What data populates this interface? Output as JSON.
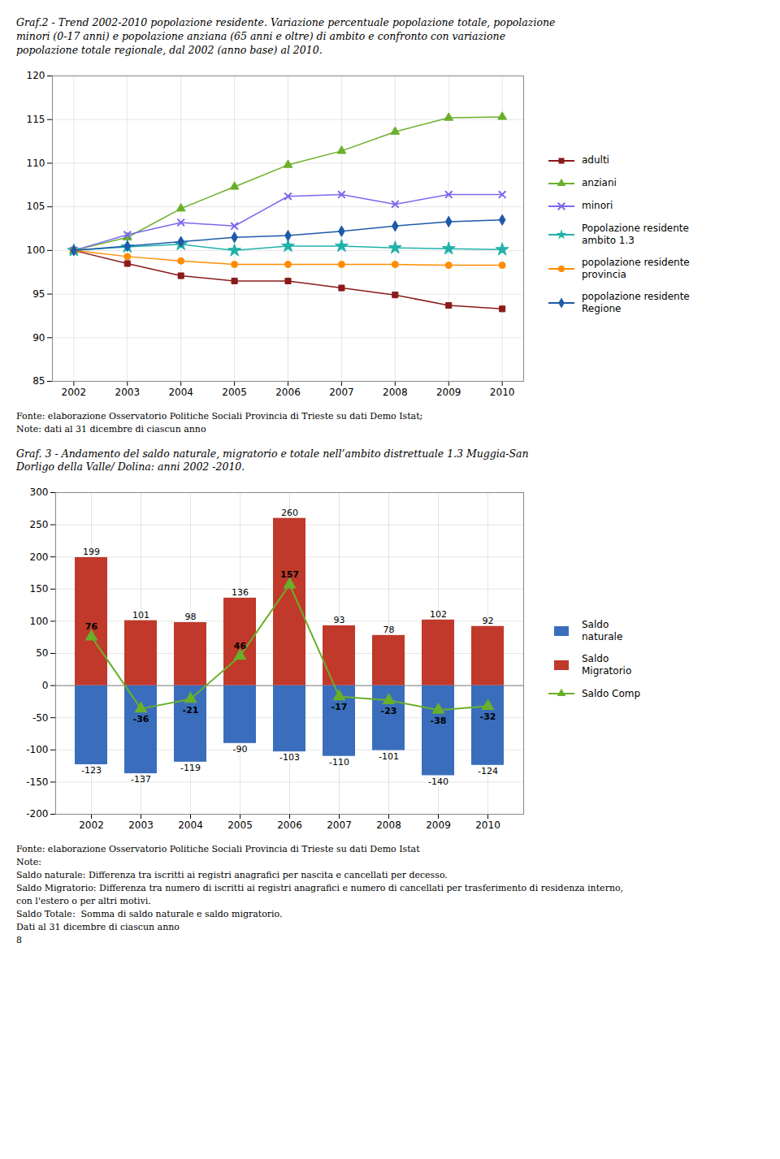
{
  "chart_data": [
    {
      "type": "line",
      "title": "Graf.2 - Trend 2002-2010 popolazione residente. Variazione percentuale popolazione totale, popolazione\nminori (0-17 anni) e popolazione anziana (65 anni e oltre) di ambito e confronto con variazione\npopolazione totale regionale, dal 2002 (anno base) al 2010.",
      "x": [
        2002,
        2003,
        2004,
        2005,
        2006,
        2007,
        2008,
        2009,
        2010
      ],
      "series": [
        {
          "name": "adulti",
          "color": "#8B1A1A",
          "marker": "square",
          "values": [
            100,
            98.5,
            97.1,
            96.5,
            96.5,
            95.7,
            94.9,
            93.7,
            93.3
          ]
        },
        {
          "name": "anziani",
          "color": "#6AAF2A",
          "marker": "triangle",
          "values": [
            100,
            101.5,
            104.8,
            107.3,
            109.8,
            111.4,
            113.6,
            115.2,
            115.3
          ]
        },
        {
          "name": "minori",
          "color": "#7B68EE",
          "marker": "x",
          "values": [
            100,
            101.8,
            103.2,
            102.8,
            106.2,
            106.4,
            105.3,
            106.4,
            106.4
          ]
        },
        {
          "name": "Popolazione residente\nambito 1.3",
          "color": "#20B2AA",
          "marker": "star",
          "values": [
            100,
            100.4,
            100.7,
            100.0,
            100.5,
            100.5,
            100.3,
            100.2,
            100.1
          ]
        },
        {
          "name": "popolazione residente\nprovincia",
          "color": "#FF8C00",
          "marker": "circle",
          "values": [
            100,
            99.3,
            98.8,
            98.4,
            98.4,
            98.4,
            98.4,
            98.3,
            98.3
          ]
        },
        {
          "name": "popolazione residente\nRegione",
          "color": "#1E5AA8",
          "marker": "diamond",
          "values": [
            100,
            100.5,
            101.0,
            101.5,
            101.7,
            102.2,
            102.8,
            103.3,
            103.5
          ]
        }
      ],
      "xlim": [
        2001.6,
        2010.4
      ],
      "xticks": [
        2002,
        2003,
        2004,
        2005,
        2006,
        2007,
        2008,
        2009,
        2010
      ],
      "ylim": [
        85,
        120
      ],
      "yticks": [
        85,
        90,
        95,
        100,
        105,
        110,
        115,
        120
      ],
      "grid": true,
      "legend": "right",
      "annotations": [
        "Fonte: elaborazione Osservatorio Politiche Sociali Provincia di Trieste su dati Demo Istat;",
        "Note: dati al 31 dicembre di ciascun anno"
      ]
    },
    {
      "type": "bar",
      "title": "Graf. 3 - Andamento del saldo naturale, migratorio e totale nell’ambito distrettuale 1.3 Muggia-San\nDorligo della Valle/ Dolina: anni 2002 -2010.",
      "categories": [
        "2002",
        "2003",
        "2004",
        "2005",
        "2006",
        "2007",
        "2008",
        "2009",
        "2010"
      ],
      "series": [
        {
          "name": "Saldo\nnaturale",
          "type": "bar",
          "color": "#3A6EBC",
          "values": [
            -123,
            -137,
            -119,
            -90,
            -103,
            -110,
            -101,
            -140,
            -124
          ]
        },
        {
          "name": "Saldo\nMigratorio",
          "type": "bar",
          "color": "#C0392B",
          "values": [
            199,
            101,
            98,
            136,
            260,
            93,
            78,
            102,
            92
          ]
        },
        {
          "name": "Saldo Comp",
          "type": "line",
          "marker": "triangle",
          "color": "#6AAF2A",
          "values": [
            76,
            -36,
            -21,
            46,
            157,
            -17,
            -23,
            -38,
            -32
          ]
        }
      ],
      "ylim": [
        -200,
        300
      ],
      "yticks": [
        -200,
        -150,
        -100,
        -50,
        0,
        50,
        100,
        150,
        200,
        250,
        300
      ],
      "grid": true,
      "legend": "right",
      "data_labels": true,
      "annotations": [
        "Fonte: elaborazione Osservatorio Politiche Sociali Provincia di Trieste su dati Demo Istat",
        "Note:",
        "Saldo naturale: Differenza tra iscritti ai registri anagrafici per nascita e cancellati per decesso.",
        "Saldo Migratorio: Differenza tra numero di iscritti ai registri anagrafici e numero di cancellati per trasferimento di residenza interno,",
        "con l'estero o per altri motivi.",
        "Saldo Totale:  Somma di saldo naturale e saldo migratorio.",
        "Dati al 31 dicembre di ciascun anno",
        "8"
      ]
    }
  ]
}
